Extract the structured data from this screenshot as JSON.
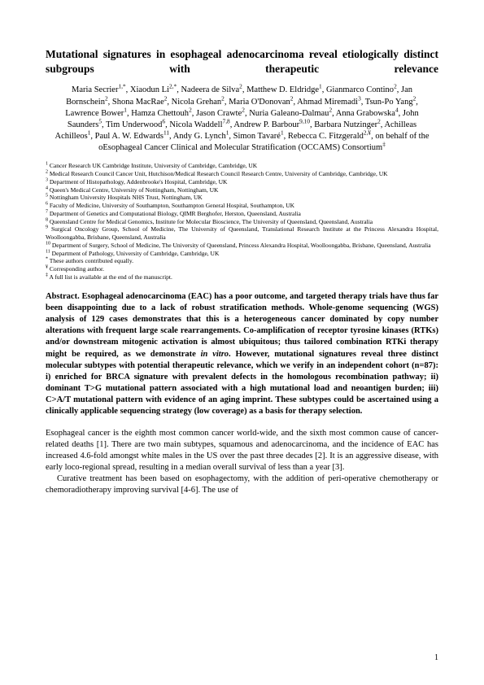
{
  "title": "Mutational signatures in esophageal adenocarcinoma reveal etiologically distinct subgroups with therapeutic relevance",
  "authors_html": "Maria Secrier<sup>1,*</sup>, Xiaodun Li<sup>2,*</sup>, Nadeera de Silva<sup>2</sup>, Matthew D. Eldridge<sup>1</sup>, Gianmarco Contino<sup>2</sup>, Jan Bornschein<sup>2</sup>, Shona MacRae<sup>2</sup>, Nicola Grehan<sup>2</sup>, Maria O'Donovan<sup>2</sup>, Ahmad Miremadi<sup>3</sup>, Tsun-Po Yang<sup>2</sup>, Lawrence Bower<sup>1</sup>, Hamza Chettouh<sup>2</sup>, Jason Crawte<sup>2</sup>, Nuria Galeano-Dalmau<sup>2</sup>, Anna Grabowska<sup>4</sup>, John Saunders<sup>5</sup>, Tim Underwood<sup>6</sup>, Nicola Waddell<sup>7,8</sup>, Andrew P. Barbour<sup>9,10</sup>, Barbara Nutzinger<sup>2</sup>, Achilleas Achilleos<sup>1</sup>, Paul A. W. Edwards<sup>11</sup>, Andy G. Lynch<sup>1</sup>, Simon Tavaré<sup>1</sup>, Rebecca C. Fitzgerald<sup>2,¥</sup>, on behalf of the oEsophageal Cancer Clinical and Molecular Stratification (OCCAMS) Consortium<sup>‡</sup>",
  "affiliations": [
    "Cancer Research UK Cambridge Institute, University of Cambridge, Cambridge, UK",
    "Medical Research Council Cancer Unit, Hutchison/Medical Research Council Research Centre, University of Cambridge, Cambridge, UK",
    "Department of Histopathology, Addenbrooke's Hospital, Cambridge, UK",
    "Queen's Medical Centre, University of Nottingham, Nottingham, UK",
    "Nottingham University Hospitals NHS Trust, Nottingham, UK",
    "Faculty of Medicine, University of Southampton, Southampton General Hospital, Southampton, UK",
    "Department of Genetics and Computational Biology, QIMR Berghofer, Herston, Queensland, Australia",
    "Queensland Centre for Medical Genomics, Institute for Molecular Bioscience, The University of Queensland, Queensland, Australia",
    "Surgical Oncology Group, School of Medicine, The University of Queensland, Translational Research Institute at the Princess Alexandra Hospital, Woolloongabba, Brisbane, Queensland, Australia",
    "Department of Surgery, School of Medicine, The University of Queensland, Princess Alexandra Hospital, Woolloongabba, Brisbane, Queensland, Australia",
    "Department of Pathology, University of Cambridge, Cambridge, UK"
  ],
  "notes": {
    "equal": "These authors contributed equally.",
    "corresponding": "Corresponding author.",
    "consortium": "A full list is available at the end of the manuscript."
  },
  "abstract_label": "Abstract.",
  "abstract_text": " Esophageal adenocarcinoma (EAC) has a poor outcome, and targeted therapy trials have thus far been disappointing due to a lack of robust stratification methods. Whole-genome sequencing (WGS) analysis of 129 cases demonstrates that this is a heterogeneous cancer dominated by copy number alterations with frequent large scale rearrangements. Co-amplification of receptor tyrosine kinases (RTKs) and/or downstream mitogenic activation is almost ubiquitous; thus tailored combination RTKi therapy might be required, as we demonstrate ",
  "abstract_italic": "in vitro",
  "abstract_text2": ". However, mutational signatures reveal three distinct molecular subtypes with potential therapeutic relevance, which we verify in an independent cohort (n=87): i) enriched for BRCA signature with prevalent defects in the homologous recombination pathway; ii) dominant T>G mutational pattern associated with a high mutational load and neoantigen burden; iii) C>A/T mutational pattern with evidence of an aging imprint. These subtypes could be ascertained using a clinically applicable sequencing strategy (low coverage) as a basis for therapy selection.",
  "body_p1": "Esophageal cancer is the eighth most common cancer world-wide, and the sixth most common cause of cancer-related deaths [1]. There are two main subtypes, squamous and adenocarcinoma, and the incidence of EAC has increased 4.6-fold amongst white males in the US over the past three decades [2]. It is an aggressive disease, with early loco-regional spread, resulting in a median overall survival of less than a year [3].",
  "body_p2": "Curative treatment has been based on esophagectomy, with the addition of peri-operative chemotherapy or chemoradiotherapy improving survival [4-6]. The use of",
  "page_number": "1",
  "colors": {
    "background": "#ffffff",
    "text": "#000000"
  },
  "fonts": {
    "title_size": 13.5,
    "body_size": 10.5,
    "affil_size": 7.5
  }
}
